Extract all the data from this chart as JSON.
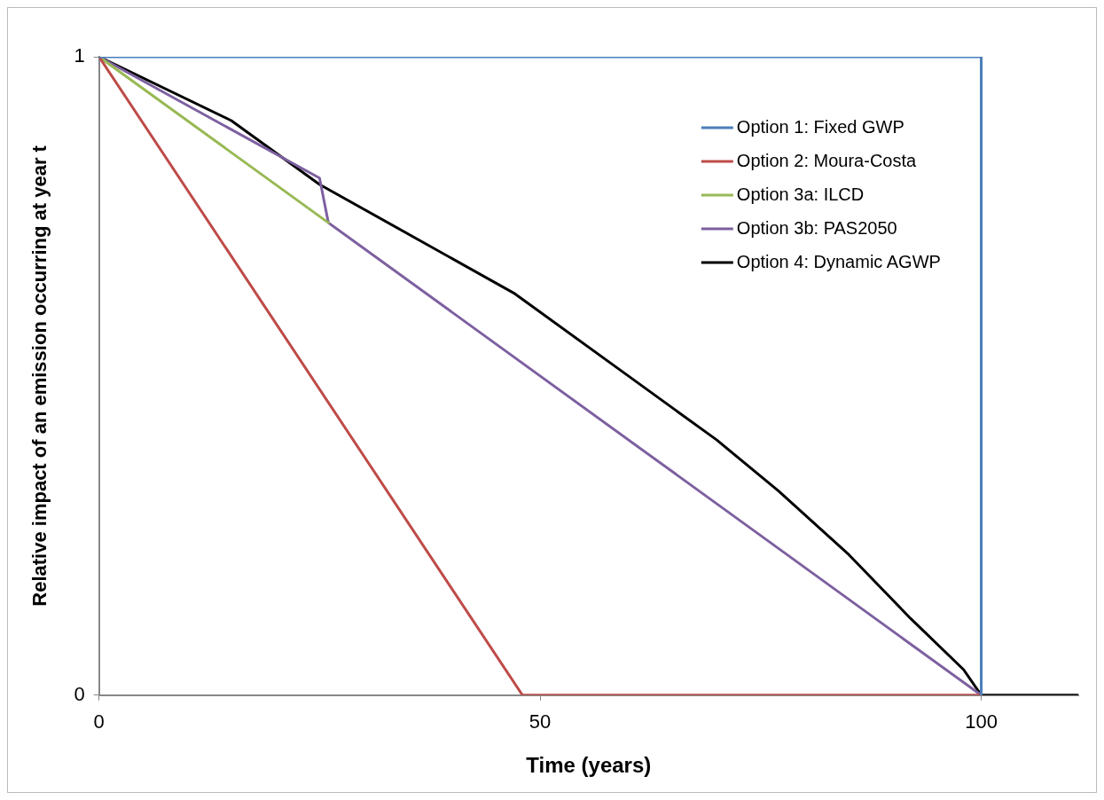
{
  "chart_data": {
    "type": "line",
    "xlabel": "Time (years)",
    "ylabel": "Relative impact of an emission occurring at year t",
    "xlim": [
      0,
      111
    ],
    "xticks": [
      0,
      50,
      100
    ],
    "ylim": [
      0,
      1
    ],
    "yticks": [
      0,
      1
    ],
    "grid": false,
    "legend": "top right",
    "marker": "none",
    "line_style": "solid",
    "series": [
      {
        "name": "Option 1: Fixed GWP",
        "color": "#4a7ebb",
        "x": [
          0,
          100,
          100
        ],
        "values": [
          1,
          1,
          0
        ]
      },
      {
        "name": "Option 2: Moura-Costa",
        "color": "#be4b48",
        "x": [
          0,
          48,
          100
        ],
        "values": [
          1,
          0,
          0
        ]
      },
      {
        "name": "Option 3a: ILCD",
        "color": "#98b954",
        "x": [
          0,
          26
        ],
        "values": [
          1,
          0.74
        ]
      },
      {
        "name": "Option 3b: PAS2050",
        "color": "#7d60a0",
        "x": [
          0,
          25,
          26,
          100
        ],
        "values": [
          1,
          0.81,
          0.74,
          0
        ]
      },
      {
        "name": "Option 4: Dynamic AGWP",
        "color": "#000000",
        "x": [
          0,
          15,
          25,
          47,
          60,
          70,
          77,
          85,
          92,
          98,
          100,
          111
        ],
        "values": [
          1,
          0.9,
          0.8,
          0.63,
          0.5,
          0.4,
          0.32,
          0.22,
          0.12,
          0.04,
          0,
          0
        ]
      }
    ]
  }
}
